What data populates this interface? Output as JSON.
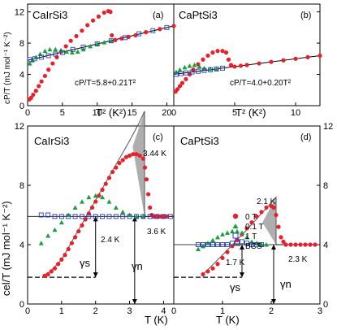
{
  "colors": {
    "zero_T": "#e8202a",
    "point1_T": "#1aa03a",
    "one_T": "#2a3fb5",
    "bcs": "#555555",
    "shade": "#9a9a9a"
  },
  "labels": {
    "ylabel_top": "cP/T (mJ mol⁻¹ K⁻²)",
    "xlabel_top": "T² (K²)",
    "ylabel_bottom": "cel/T (mJ mol⁻¹ K⁻²)",
    "xlabel_bottom": "T (K)"
  },
  "panels": {
    "a": {
      "title": "CaIrSi3",
      "tag": "(a)",
      "fit": "cP/T=5.8+0.21T²"
    },
    "b": {
      "title": "CaPtSi3",
      "tag": "(b)",
      "fit": "cP/T=4.0+0.20T²"
    },
    "c": {
      "title": "CaIrSi3",
      "tag": "(c)",
      "ann_tc": "3.44 K",
      "ann_24": "2.4 K",
      "ann_36": "3.6 K",
      "gamma_s": "γs",
      "gamma_n": "γn"
    },
    "d": {
      "title": "CaPtSi3",
      "tag": "(d)",
      "ann_tc": "2.1 K",
      "ann_17": "1.7 K",
      "ann_23": "2.3 K",
      "gamma_s": "γs",
      "gamma_n": "γn"
    }
  },
  "legend": [
    "0 T",
    "0.1 T",
    "1 T",
    "BCS"
  ],
  "chart_data": [
    {
      "panel": "a",
      "type": "scatter",
      "xlabel": "T² (K²)",
      "ylabel": "cP/T (mJ mol⁻¹ K⁻²)",
      "xlim": [
        0,
        21
      ],
      "ylim": [
        0,
        13
      ],
      "xticks": [
        0,
        5,
        10,
        15,
        20
      ],
      "yticks": [
        0,
        4,
        8,
        12
      ],
      "fit_line": {
        "intercept": 5.8,
        "slope": 0.21
      },
      "series": [
        {
          "name": "0 T",
          "x": [
            0.25,
            0.5,
            0.8,
            1.2,
            1.6,
            2.0,
            2.5,
            3.0,
            3.6,
            4.2,
            4.8,
            5.5,
            6.2,
            7.0,
            7.8,
            8.6,
            9.4,
            10.2,
            11.0,
            11.6,
            11.9,
            12.1,
            12.6,
            13.5,
            14.5,
            15.5,
            17,
            19,
            21
          ],
          "y": [
            0.8,
            1.0,
            1.4,
            1.9,
            2.5,
            3.1,
            3.8,
            4.6,
            5.4,
            6.2,
            6.9,
            7.6,
            8.3,
            8.9,
            9.6,
            10.3,
            10.9,
            11.4,
            11.9,
            12.1,
            12.0,
            9.0,
            8.4,
            8.6,
            8.8,
            9.0,
            9.4,
            9.8,
            10.2
          ]
        },
        {
          "name": "0.1 T",
          "x": [
            0.3,
            0.7,
            1.2,
            1.8,
            2.5,
            3.2,
            4.0,
            4.8,
            5.6,
            6.4,
            7.2,
            8.0,
            9.0,
            10.0,
            11.0,
            12.0
          ],
          "y": [
            5.4,
            5.8,
            6.2,
            6.6,
            7.0,
            7.2,
            7.2,
            7.1,
            6.9,
            6.8,
            6.9,
            7.2,
            7.6,
            7.9,
            8.1,
            8.3
          ]
        },
        {
          "name": "1 T",
          "x": [
            0.3,
            1.0,
            2.0,
            3.0,
            4.0,
            5.0,
            6.5,
            8.0,
            10.0,
            12.0,
            14.0,
            16.0,
            18.0,
            20.0
          ],
          "y": [
            5.9,
            6.0,
            6.2,
            6.4,
            6.6,
            6.8,
            7.2,
            7.5,
            7.9,
            8.3,
            8.7,
            9.2,
            9.6,
            10.0
          ]
        }
      ]
    },
    {
      "panel": "b",
      "type": "scatter",
      "xlabel": "T² (K²)",
      "ylabel": "cP/T (mJ mol⁻¹ K⁻²)",
      "xlim": [
        0,
        12
      ],
      "ylim": [
        0,
        13
      ],
      "xticks": [
        0,
        5,
        10
      ],
      "yticks": [
        0,
        4,
        8,
        12
      ],
      "fit_line": {
        "intercept": 4.0,
        "slope": 0.2
      },
      "series": [
        {
          "name": "0 T",
          "x": [
            0.15,
            0.3,
            0.5,
            0.7,
            1.0,
            1.3,
            1.6,
            2.0,
            2.4,
            2.8,
            3.2,
            3.6,
            4.0,
            4.3,
            4.5,
            4.7,
            5.0,
            5.5,
            6,
            7,
            8,
            9,
            10,
            11,
            12
          ],
          "y": [
            1.8,
            2.1,
            2.5,
            2.9,
            3.4,
            4.0,
            4.6,
            5.3,
            5.9,
            6.4,
            6.8,
            7.0,
            7.0,
            6.8,
            5.9,
            5.2,
            5.0,
            5.1,
            5.2,
            5.4,
            5.6,
            5.8,
            6.0,
            6.2,
            6.4
          ]
        },
        {
          "name": "0.1 T",
          "x": [
            0.2,
            0.5,
            0.9,
            1.3,
            1.7,
            2.1,
            2.5,
            3.0,
            3.5
          ],
          "y": [
            4.3,
            4.6,
            4.9,
            5.1,
            5.2,
            5.0,
            4.8,
            4.7,
            4.7
          ]
        },
        {
          "name": "1 T",
          "x": [
            0.2,
            0.6,
            1.0,
            1.5,
            2.0,
            2.5,
            3.0,
            3.5,
            4.0
          ],
          "y": [
            4.0,
            4.1,
            4.2,
            4.3,
            4.4,
            4.5,
            4.6,
            4.7,
            4.8
          ]
        }
      ]
    },
    {
      "panel": "c",
      "type": "scatter",
      "xlabel": "T (K)",
      "ylabel": "cel/T (mJ mol⁻¹ K⁻²)",
      "xlim": [
        0,
        4.3
      ],
      "ylim": [
        0,
        12
      ],
      "xticks": [
        0,
        1,
        2,
        3,
        4
      ],
      "yticks": [
        0,
        4,
        8,
        12
      ],
      "gamma_n": 5.9,
      "gamma_s": 1.8,
      "tc": 3.44,
      "series": [
        {
          "name": "0 T",
          "x": [
            0.5,
            0.6,
            0.7,
            0.8,
            0.9,
            1.0,
            1.1,
            1.2,
            1.3,
            1.4,
            1.5,
            1.6,
            1.7,
            1.8,
            1.9,
            2.0,
            2.1,
            2.2,
            2.3,
            2.4,
            2.5,
            2.6,
            2.7,
            2.8,
            2.9,
            3.0,
            3.1,
            3.2,
            3.3,
            3.4,
            3.45,
            3.5,
            3.55,
            3.6,
            3.65,
            3.7,
            3.8,
            3.9,
            4.0,
            4.1
          ],
          "y": [
            1.9,
            2.0,
            2.2,
            2.4,
            2.7,
            3.0,
            3.3,
            3.7,
            4.1,
            4.5,
            4.9,
            5.3,
            5.7,
            6.1,
            6.5,
            6.9,
            7.3,
            7.7,
            8.1,
            8.5,
            8.9,
            9.2,
            9.5,
            9.7,
            9.9,
            10.0,
            10.1,
            10.1,
            10.0,
            9.8,
            9.2,
            8.4,
            7.4,
            6.5,
            6.0,
            5.9,
            5.9,
            5.9,
            5.9,
            5.9
          ]
        },
        {
          "name": "0.1 T",
          "x": [
            0.4,
            0.6,
            0.8,
            1.0,
            1.2,
            1.4,
            1.6,
            1.8,
            2.0,
            2.2,
            2.4,
            2.6,
            2.8,
            3.0,
            3.2,
            3.4
          ],
          "y": [
            4.1,
            4.6,
            5.0,
            5.5,
            6.0,
            6.5,
            6.9,
            7.2,
            7.3,
            7.2,
            6.9,
            6.5,
            6.2,
            6.0,
            5.9,
            5.9
          ]
        },
        {
          "name": "1 T",
          "x": [
            0.4,
            0.6,
            0.8,
            1.0,
            1.2,
            1.4,
            1.6,
            1.8,
            2.0,
            2.2,
            2.4,
            2.6,
            2.8,
            3.0,
            3.2,
            3.4,
            3.6,
            3.8,
            4.0,
            4.2
          ],
          "y": [
            6.0,
            6.0,
            5.9,
            5.9,
            5.9,
            5.9,
            5.9,
            5.9,
            5.9,
            5.9,
            5.9,
            5.9,
            5.9,
            5.9,
            5.9,
            5.9,
            5.9,
            5.9,
            5.9,
            5.9
          ]
        },
        {
          "name": "BCS",
          "x": [
            0.5,
            1.0,
            1.5,
            2.0,
            2.5,
            3.0,
            3.3,
            3.44,
            3.44,
            4.3
          ],
          "y": [
            1.8,
            3.0,
            5.0,
            7.0,
            9.0,
            11.0,
            12.3,
            13.0,
            5.9,
            5.9
          ]
        }
      ]
    },
    {
      "panel": "d",
      "type": "scatter",
      "xlabel": "T (K)",
      "ylabel": "cel/T (mJ mol⁻¹ K⁻²)",
      "xlim": [
        0,
        3
      ],
      "ylim": [
        0,
        12
      ],
      "xticks": [
        0,
        1,
        2,
        3
      ],
      "yticks": [
        0,
        4,
        8,
        12
      ],
      "gamma_n": 4.0,
      "gamma_s": 1.8,
      "tc": 2.1,
      "series": [
        {
          "name": "0 T",
          "x": [
            0.6,
            0.7,
            0.8,
            0.9,
            1.0,
            1.1,
            1.2,
            1.3,
            1.4,
            1.5,
            1.6,
            1.7,
            1.8,
            1.9,
            2.0,
            2.05,
            2.1,
            2.15,
            2.2,
            2.25,
            2.3,
            2.4,
            2.5,
            2.6,
            2.7,
            2.8,
            2.9
          ],
          "y": [
            2.0,
            2.2,
            2.4,
            2.7,
            3.1,
            3.5,
            3.9,
            4.3,
            4.7,
            5.1,
            5.5,
            5.9,
            6.2,
            6.5,
            6.6,
            6.5,
            6.0,
            5.2,
            4.5,
            4.2,
            4.0,
            4.0,
            4.0,
            4.0,
            4.0,
            4.0,
            4.0
          ]
        },
        {
          "name": "0.1 T",
          "x": [
            0.5,
            0.6,
            0.7,
            0.8,
            0.9,
            1.0,
            1.1,
            1.2,
            1.3,
            1.4,
            1.5,
            1.6,
            1.7,
            1.8,
            1.9
          ],
          "y": [
            3.7,
            3.9,
            4.1,
            4.3,
            4.5,
            4.7,
            4.8,
            4.9,
            4.9,
            4.8,
            4.5,
            4.2,
            4.1,
            4.0,
            4.0
          ]
        },
        {
          "name": "1 T",
          "x": [
            0.5,
            0.6,
            0.7,
            0.8,
            0.9,
            1.0,
            1.1,
            1.2,
            1.3,
            1.4,
            1.5,
            1.6,
            1.7,
            1.8
          ],
          "y": [
            4.0,
            4.0,
            4.0,
            4.0,
            4.0,
            4.0,
            4.0,
            4.1,
            4.2,
            4.2,
            4.1,
            4.0,
            4.0,
            4.0
          ]
        },
        {
          "name": "BCS",
          "x": [
            0.6,
            1.0,
            1.5,
            1.8,
            2.1,
            2.1,
            3.0
          ],
          "y": [
            2.0,
            3.3,
            5.0,
            6.1,
            7.2,
            4.0,
            4.0
          ]
        }
      ]
    }
  ]
}
